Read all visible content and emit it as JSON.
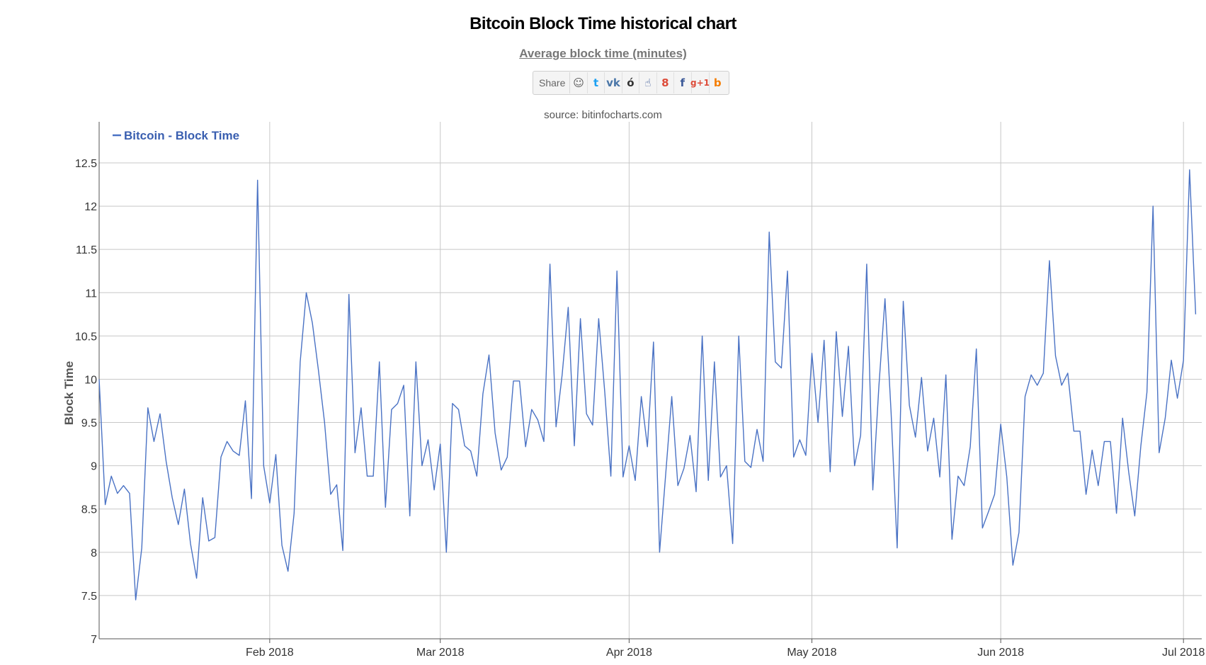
{
  "header": {
    "title": "Bitcoin Block Time historical chart",
    "subtitle": "Average block time (minutes)",
    "share_label": "Share",
    "source": "source: bitinfocharts.com"
  },
  "share_buttons": [
    {
      "icon": "reddit-icon",
      "glyph": "☺",
      "color": "#555555"
    },
    {
      "icon": "twitter-icon",
      "glyph": "t",
      "color": "#1da1f2"
    },
    {
      "icon": "vk-icon",
      "glyph": "vk",
      "color": "#4a76a8"
    },
    {
      "icon": "weibo-icon",
      "glyph": "ó",
      "color": "#333333"
    },
    {
      "icon": "like-icon",
      "glyph": "☝",
      "color": "#3b5998"
    },
    {
      "icon": "google-plus-icon",
      "glyph": "8",
      "color": "#dd4b39"
    },
    {
      "icon": "facebook-icon",
      "glyph": "f",
      "color": "#3b5998"
    },
    {
      "icon": "google-plus-one-icon",
      "glyph": "g+1",
      "color": "#dd4b39"
    },
    {
      "icon": "blogger-icon",
      "glyph": "b",
      "color": "#f57d00"
    }
  ],
  "chart_data": {
    "type": "line",
    "title": "Bitcoin Block Time historical chart",
    "subtitle": "Average block time (minutes)",
    "ylabel": "Block Time",
    "xlabel": "",
    "ylim": [
      7,
      12.5
    ],
    "yticks": [
      7,
      7.5,
      8,
      8.5,
      9,
      9.5,
      10,
      10.5,
      11,
      11.5,
      12,
      12.5
    ],
    "xticks": [
      {
        "date": "2018-02-01",
        "label": "Feb 2018"
      },
      {
        "date": "2018-03-01",
        "label": "Mar 2018"
      },
      {
        "date": "2018-04-01",
        "label": "Apr 2018"
      },
      {
        "date": "2018-05-01",
        "label": "May 2018"
      },
      {
        "date": "2018-06-01",
        "label": "Jun 2018"
      },
      {
        "date": "2018-07-01",
        "label": "Jul 2018"
      }
    ],
    "x_range": [
      "2018-01-04",
      "2018-07-04"
    ],
    "grid": true,
    "legend_position": "top-left",
    "colors": {
      "series": "#4a72c4",
      "grid": "#c8c8c8",
      "axis": "#555555"
    },
    "series": [
      {
        "name": "Bitcoin - Block Time",
        "x": [
          "2018-01-04",
          "2018-01-05",
          "2018-01-06",
          "2018-01-07",
          "2018-01-08",
          "2018-01-09",
          "2018-01-10",
          "2018-01-11",
          "2018-01-12",
          "2018-01-13",
          "2018-01-14",
          "2018-01-15",
          "2018-01-16",
          "2018-01-17",
          "2018-01-18",
          "2018-01-19",
          "2018-01-20",
          "2018-01-21",
          "2018-01-22",
          "2018-01-23",
          "2018-01-24",
          "2018-01-25",
          "2018-01-26",
          "2018-01-27",
          "2018-01-28",
          "2018-01-29",
          "2018-01-30",
          "2018-01-31",
          "2018-02-01",
          "2018-02-02",
          "2018-02-03",
          "2018-02-04",
          "2018-02-05",
          "2018-02-06",
          "2018-02-07",
          "2018-02-08",
          "2018-02-09",
          "2018-02-10",
          "2018-02-11",
          "2018-02-12",
          "2018-02-13",
          "2018-02-14",
          "2018-02-15",
          "2018-02-16",
          "2018-02-17",
          "2018-02-18",
          "2018-02-19",
          "2018-02-20",
          "2018-02-21",
          "2018-02-22",
          "2018-02-23",
          "2018-02-24",
          "2018-02-25",
          "2018-02-26",
          "2018-02-27",
          "2018-02-28",
          "2018-03-01",
          "2018-03-02",
          "2018-03-03",
          "2018-03-04",
          "2018-03-05",
          "2018-03-06",
          "2018-03-07",
          "2018-03-08",
          "2018-03-09",
          "2018-03-10",
          "2018-03-11",
          "2018-03-12",
          "2018-03-13",
          "2018-03-14",
          "2018-03-15",
          "2018-03-16",
          "2018-03-17",
          "2018-03-18",
          "2018-03-19",
          "2018-03-20",
          "2018-03-21",
          "2018-03-22",
          "2018-03-23",
          "2018-03-24",
          "2018-03-25",
          "2018-03-26",
          "2018-03-27",
          "2018-03-28",
          "2018-03-29",
          "2018-03-30",
          "2018-03-31",
          "2018-04-01",
          "2018-04-02",
          "2018-04-03",
          "2018-04-04",
          "2018-04-05",
          "2018-04-06",
          "2018-04-07",
          "2018-04-08",
          "2018-04-09",
          "2018-04-10",
          "2018-04-11",
          "2018-04-12",
          "2018-04-13",
          "2018-04-14",
          "2018-04-15",
          "2018-04-16",
          "2018-04-17",
          "2018-04-18",
          "2018-04-19",
          "2018-04-20",
          "2018-04-21",
          "2018-04-22",
          "2018-04-23",
          "2018-04-24",
          "2018-04-25",
          "2018-04-26",
          "2018-04-27",
          "2018-04-28",
          "2018-04-29",
          "2018-04-30",
          "2018-05-01",
          "2018-05-02",
          "2018-05-03",
          "2018-05-04",
          "2018-05-05",
          "2018-05-06",
          "2018-05-07",
          "2018-05-08",
          "2018-05-09",
          "2018-05-10",
          "2018-05-11",
          "2018-05-12",
          "2018-05-13",
          "2018-05-14",
          "2018-05-15",
          "2018-05-16",
          "2018-05-17",
          "2018-05-18",
          "2018-05-19",
          "2018-05-20",
          "2018-05-21",
          "2018-05-22",
          "2018-05-23",
          "2018-05-24",
          "2018-05-25",
          "2018-05-26",
          "2018-05-27",
          "2018-05-28",
          "2018-05-29",
          "2018-05-30",
          "2018-05-31",
          "2018-06-01",
          "2018-06-02",
          "2018-06-03",
          "2018-06-04",
          "2018-06-05",
          "2018-06-06",
          "2018-06-07",
          "2018-06-08",
          "2018-06-09",
          "2018-06-10",
          "2018-06-11",
          "2018-06-12",
          "2018-06-13",
          "2018-06-14",
          "2018-06-15",
          "2018-06-16",
          "2018-06-17",
          "2018-06-18",
          "2018-06-19",
          "2018-06-20",
          "2018-06-21",
          "2018-06-22",
          "2018-06-23",
          "2018-06-24",
          "2018-06-25",
          "2018-06-26",
          "2018-06-27",
          "2018-06-28",
          "2018-06-29",
          "2018-06-30",
          "2018-07-01",
          "2018-07-02",
          "2018-07-03"
        ],
        "values": [
          10.0,
          8.55,
          8.88,
          8.68,
          8.77,
          8.68,
          7.45,
          8.05,
          9.67,
          9.28,
          9.6,
          9.05,
          8.63,
          8.32,
          8.73,
          8.1,
          7.7,
          8.63,
          8.13,
          8.17,
          9.1,
          9.28,
          9.17,
          9.12,
          9.75,
          8.62,
          12.3,
          9.0,
          8.57,
          9.13,
          8.08,
          7.78,
          8.45,
          10.2,
          11.0,
          10.65,
          10.1,
          9.5,
          8.67,
          8.78,
          8.02,
          10.98,
          9.15,
          9.67,
          8.88,
          8.88,
          10.2,
          8.52,
          9.65,
          9.72,
          9.93,
          8.42,
          10.2,
          9.0,
          9.3,
          8.72,
          9.25,
          8.0,
          9.72,
          9.65,
          9.23,
          9.17,
          8.88,
          9.83,
          10.28,
          9.38,
          8.95,
          9.1,
          9.98,
          9.98,
          9.22,
          9.65,
          9.53,
          9.28,
          11.33,
          9.45,
          10.05,
          10.83,
          9.23,
          10.7,
          9.6,
          9.47,
          10.7,
          9.85,
          8.88,
          11.25,
          8.87,
          9.23,
          8.83,
          9.8,
          9.22,
          10.43,
          8.0,
          8.9,
          9.8,
          8.77,
          8.97,
          9.35,
          8.7,
          10.5,
          8.83,
          10.2,
          8.87,
          9.0,
          8.1,
          10.5,
          9.05,
          8.98,
          9.42,
          9.05,
          11.7,
          10.2,
          10.13,
          11.25,
          9.1,
          9.3,
          9.12,
          10.3,
          9.5,
          10.45,
          8.93,
          10.55,
          9.57,
          10.38,
          9.0,
          9.35,
          11.33,
          8.72,
          9.92,
          10.93,
          9.62,
          8.05,
          10.9,
          9.7,
          9.33,
          10.02,
          9.17,
          9.55,
          8.87,
          10.05,
          8.15,
          8.88,
          8.77,
          9.22,
          10.35,
          8.28,
          8.47,
          8.67,
          9.48,
          8.87,
          7.85,
          8.23,
          9.8,
          10.05,
          9.93,
          10.07,
          11.37,
          10.27,
          9.93,
          10.07,
          9.4,
          9.4,
          8.67,
          9.18,
          8.77,
          9.28,
          9.28,
          8.45,
          9.55,
          8.93,
          8.42,
          9.23,
          9.85,
          12.0,
          9.15,
          9.55,
          10.22,
          9.78,
          10.22,
          12.42,
          10.75
        ]
      }
    ]
  }
}
